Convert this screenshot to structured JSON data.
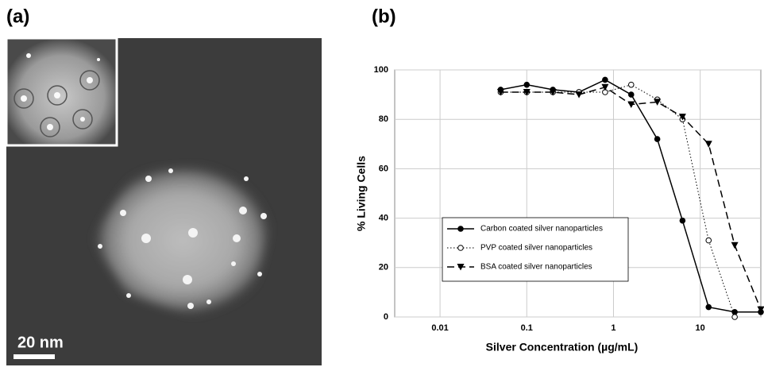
{
  "panels": {
    "a": {
      "label": "(a)",
      "scale_bar": "20 nm"
    },
    "b": {
      "label": "(b)"
    }
  },
  "chart_data": {
    "type": "line",
    "x_label": "Silver Concentration (µg/mL)",
    "y_label": "% Living Cells",
    "x": [
      0.05,
      0.1,
      0.2,
      0.4,
      0.8,
      1.6,
      3.2,
      6.25,
      12.5,
      25,
      50
    ],
    "series": [
      {
        "name": "Carbon coated silver nanoparticles",
        "color": "#000000",
        "dash": "solid",
        "marker": "filled-circle",
        "values": [
          92,
          94,
          92,
          91,
          96,
          90,
          72,
          39,
          4,
          2,
          2
        ]
      },
      {
        "name": "PVP coated silver nanoparticles",
        "color": "#000000",
        "dash": "dotted",
        "marker": "open-circle",
        "values": [
          91,
          91,
          91,
          91,
          91,
          94,
          88,
          80,
          31,
          0,
          null
        ]
      },
      {
        "name": "BSA coated silver nanoparticles",
        "color": "#000000",
        "dash": "dashed",
        "marker": "triangle-down",
        "values": [
          91,
          91,
          91,
          90,
          93,
          86,
          87,
          81,
          70,
          29,
          3
        ]
      }
    ],
    "xlog": true,
    "xlim": [
      0.003,
      50
    ],
    "xticks": [
      0.01,
      0.1,
      1,
      10
    ],
    "ylim": [
      0,
      100
    ],
    "yticks": [
      0,
      20,
      40,
      60,
      80,
      100
    ],
    "grid": true,
    "legend": "lower-left"
  }
}
